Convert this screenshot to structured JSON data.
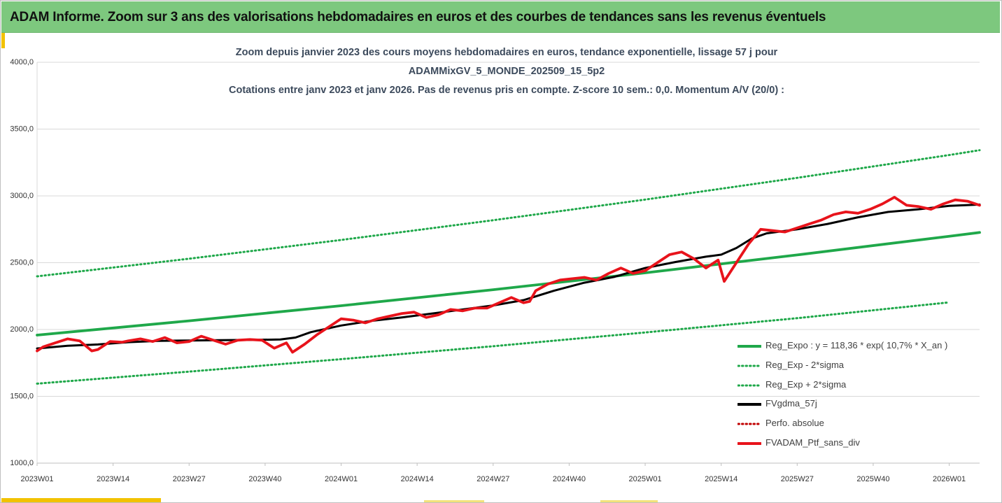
{
  "banner": {
    "title": "ADAM Informe. Zoom sur 3 ans des valorisations hebdomadaires en euros et des courbes de tendances sans les revenus éventuels"
  },
  "chart_data": {
    "type": "line",
    "title_lines": [
      "Zoom depuis janvier 2023 des cours moyens hebdomadaires  en euros, tendance exponentielle, lissage 57 j pour",
      "ADAMMixGV_5_MONDE_202509_15_5p2",
      "Cotations  entre janv 2023 et janv 2026. Pas de revenus pris en compte. Z-score 10 sem.: 0,0. Momentum A/V (20/0) :"
    ],
    "xlabel": "",
    "ylabel": "",
    "ylim": [
      1000,
      4000
    ],
    "yticks": [
      "1000,0",
      "1500,0",
      "2000,0",
      "2500,0",
      "3000,0",
      "3500,0",
      "4000,0"
    ],
    "xticks": [
      {
        "label": "2023W01",
        "x": 2023.0
      },
      {
        "label": "2023W14",
        "x": 2023.25
      },
      {
        "label": "2023W27",
        "x": 2023.5
      },
      {
        "label": "2023W40",
        "x": 2023.75
      },
      {
        "label": "2024W01",
        "x": 2024.0
      },
      {
        "label": "2024W14",
        "x": 2024.25
      },
      {
        "label": "2024W27",
        "x": 2024.5
      },
      {
        "label": "2024W40",
        "x": 2024.75
      },
      {
        "label": "2025W01",
        "x": 2025.0
      },
      {
        "label": "2025W14",
        "x": 2025.25
      },
      {
        "label": "2025W27",
        "x": 2025.5
      },
      {
        "label": "2025W40",
        "x": 2025.75
      },
      {
        "label": "2026W01",
        "x": 2026.0
      }
    ],
    "xlim": [
      2023.0,
      2026.1
    ],
    "grid": "horizontal",
    "legend_position": "bottom-right",
    "series": [
      {
        "name": "Reg_Expo : y = 118,36 * exp( 10,7% *  X_an )",
        "style": "solid",
        "color": "#1fa84a",
        "x": [
          2023.0,
          2023.5,
          2024.0,
          2024.5,
          2025.0,
          2025.5,
          2026.0,
          2026.1
        ],
        "values": [
          1958,
          2065,
          2178,
          2298,
          2424,
          2558,
          2698,
          2726
        ]
      },
      {
        "name": "Reg_Exp - 2*sigma",
        "style": "dotted",
        "color": "#1fa84a",
        "x": [
          2023.0,
          2023.5,
          2024.0,
          2024.5,
          2025.0,
          2025.5,
          2026.0
        ],
        "values": [
          1595,
          1685,
          1778,
          1875,
          1978,
          2085,
          2203
        ]
      },
      {
        "name": "Reg_Exp + 2*sigma",
        "style": "dotted",
        "color": "#1fa84a",
        "x": [
          2023.0,
          2023.5,
          2024.0,
          2024.5,
          2025.0,
          2025.5,
          2026.0,
          2026.1
        ],
        "values": [
          2398,
          2530,
          2670,
          2818,
          2972,
          3135,
          3306,
          3342
        ]
      },
      {
        "name": "FVgdma_57j",
        "style": "solid",
        "color": "#000000",
        "x": [
          2023.0,
          2023.1,
          2023.2,
          2023.3,
          2023.4,
          2023.5,
          2023.6,
          2023.7,
          2023.8,
          2023.85,
          2023.9,
          2024.0,
          2024.1,
          2024.2,
          2024.3,
          2024.4,
          2024.5,
          2024.6,
          2024.7,
          2024.8,
          2024.9,
          2025.0,
          2025.1,
          2025.2,
          2025.25,
          2025.3,
          2025.35,
          2025.4,
          2025.5,
          2025.6,
          2025.7,
          2025.8,
          2025.9,
          2026.0,
          2026.1
        ],
        "values": [
          1858,
          1878,
          1888,
          1905,
          1915,
          1918,
          1920,
          1922,
          1925,
          1940,
          1980,
          2030,
          2065,
          2090,
          2120,
          2150,
          2180,
          2220,
          2290,
          2350,
          2395,
          2460,
          2505,
          2545,
          2560,
          2610,
          2680,
          2720,
          2750,
          2790,
          2840,
          2880,
          2900,
          2925,
          2935
        ]
      },
      {
        "name": "Perfo. absolue",
        "style": "dotted",
        "color": "#c00000",
        "x": [],
        "values": []
      },
      {
        "name": "FVADAM_Ptf_sans_div",
        "style": "solid",
        "color": "#e8131b",
        "x": [
          2023.0,
          2023.02,
          2023.06,
          2023.1,
          2023.14,
          2023.18,
          2023.2,
          2023.24,
          2023.28,
          2023.3,
          2023.34,
          2023.38,
          2023.42,
          2023.46,
          2023.5,
          2023.54,
          2023.58,
          2023.62,
          2023.66,
          2023.7,
          2023.74,
          2023.78,
          2023.82,
          2023.84,
          2023.88,
          2023.92,
          2023.96,
          2024.0,
          2024.04,
          2024.08,
          2024.12,
          2024.16,
          2024.2,
          2024.24,
          2024.28,
          2024.32,
          2024.36,
          2024.4,
          2024.44,
          2024.48,
          2024.52,
          2024.56,
          2024.6,
          2024.62,
          2024.64,
          2024.68,
          2024.72,
          2024.76,
          2024.8,
          2024.84,
          2024.88,
          2024.92,
          2024.96,
          2025.0,
          2025.04,
          2025.08,
          2025.12,
          2025.16,
          2025.2,
          2025.24,
          2025.26,
          2025.3,
          2025.34,
          2025.38,
          2025.42,
          2025.46,
          2025.5,
          2025.54,
          2025.58,
          2025.62,
          2025.66,
          2025.7,
          2025.74,
          2025.78,
          2025.82,
          2025.86,
          2025.9,
          2025.94,
          2025.98,
          2026.02,
          2026.06,
          2026.1
        ],
        "values": [
          1840,
          1870,
          1900,
          1930,
          1915,
          1840,
          1850,
          1910,
          1905,
          1915,
          1930,
          1910,
          1940,
          1900,
          1910,
          1950,
          1920,
          1890,
          1920,
          1925,
          1920,
          1860,
          1900,
          1830,
          1890,
          1960,
          2020,
          2080,
          2070,
          2050,
          2080,
          2100,
          2120,
          2130,
          2090,
          2110,
          2150,
          2140,
          2160,
          2160,
          2200,
          2240,
          2200,
          2210,
          2290,
          2340,
          2370,
          2380,
          2390,
          2370,
          2420,
          2460,
          2420,
          2440,
          2500,
          2560,
          2580,
          2530,
          2460,
          2520,
          2360,
          2500,
          2640,
          2750,
          2740,
          2730,
          2760,
          2790,
          2820,
          2860,
          2880,
          2870,
          2900,
          2940,
          2990,
          2930,
          2920,
          2900,
          2940,
          2970,
          2960,
          2930
        ]
      }
    ]
  }
}
